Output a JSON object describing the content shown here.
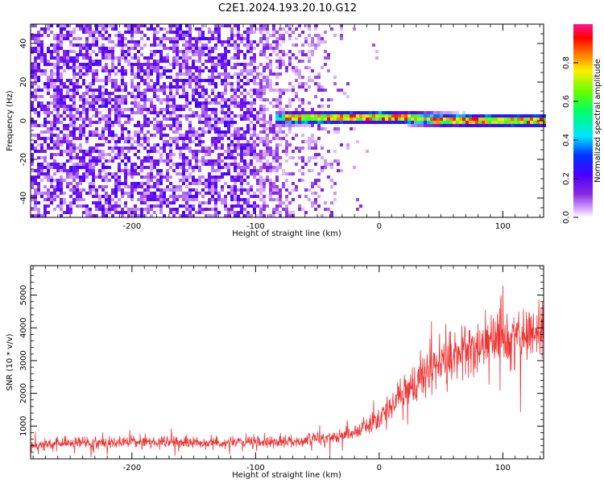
{
  "title": "C2E1.2024.193.20.10.G12",
  "chart_data": [
    {
      "type": "heatmap",
      "xlabel": "Height of straight line (km)",
      "ylabel": "Frequency (Hz)",
      "xlim": [
        -282,
        133
      ],
      "ylim": [
        -50,
        50
      ],
      "xticks": [
        -200,
        -100,
        0,
        100
      ],
      "yticks": [
        -40,
        -20,
        0,
        20,
        40
      ],
      "colorbar": {
        "label": "Normalized spectral amplitude",
        "range": [
          0,
          1
        ],
        "ticks": [
          "0.0",
          "0.2",
          "0.4",
          "0.6",
          "0.8"
        ],
        "colormap": [
          "#ffffff",
          "#d9b0ff",
          "#8a2be2",
          "#4b00ff",
          "#0033ff",
          "#00e5ff",
          "#00ff66",
          "#66ff00",
          "#ffee00",
          "#ff6600",
          "#ff0000",
          "#ff1493"
        ]
      },
      "features": [
        {
          "name": "broadband noise",
          "x_range": [
            -282,
            -25
          ],
          "freq_range": [
            -50,
            50
          ],
          "amplitude_max": 0.25
        },
        {
          "name": "signal band",
          "x_range": [
            -85,
            133
          ],
          "center_freq_at_x": [
            [
              -85,
              1
            ],
            [
              0,
              2
            ],
            [
              50,
              0.5
            ],
            [
              100,
              0
            ],
            [
              133,
              0
            ]
          ],
          "half_width_hz": 3,
          "amplitude_max": 0.95
        }
      ]
    },
    {
      "type": "line",
      "xlabel": "Height of straight line (km)",
      "ylabel": "SNR (10 * v/v)",
      "xlim": [
        -282,
        133
      ],
      "ylim": [
        0,
        5900
      ],
      "xticks": [
        -200,
        -100,
        0,
        100
      ],
      "yticks": [
        1000,
        2000,
        3000,
        4000,
        5000
      ],
      "series": [
        {
          "color": "#ee3333",
          "x": [
            -282,
            -250,
            -200,
            -150,
            -100,
            -60,
            -40,
            -20,
            0,
            20,
            40,
            60,
            80,
            100,
            120,
            133
          ],
          "y": [
            420,
            480,
            520,
            500,
            500,
            560,
            650,
            820,
            1250,
            2000,
            2700,
            3150,
            3400,
            3600,
            3850,
            3950
          ]
        }
      ]
    }
  ]
}
